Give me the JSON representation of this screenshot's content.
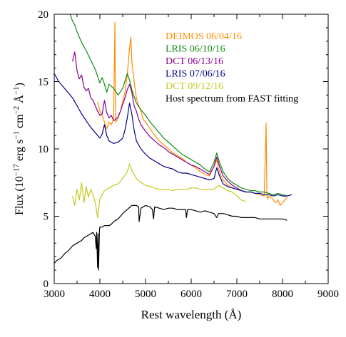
{
  "chart_data": {
    "type": "line",
    "xlabel": "Rest wavelength (Å)",
    "ylabel_main": "Flux (10",
    "ylabel_exp1": "−17",
    "ylabel_mid": " erg s",
    "ylabel_exp2": "−1",
    "ylabel_mid2": " cm",
    "ylabel_exp3": "−2",
    "ylabel_mid3": " Å",
    "ylabel_exp4": "−1",
    "ylabel_end": ")",
    "xlim": [
      3000,
      9000
    ],
    "ylim": [
      0,
      20
    ],
    "xticks": [
      "3000",
      "4000",
      "5000",
      "6000",
      "7000",
      "8000",
      "9000"
    ],
    "yticks": [
      "0",
      "5",
      "10",
      "15",
      "20"
    ],
    "grid": false,
    "legend_position": "top-right",
    "series": [
      {
        "name": "DEIMOS 06/04/16",
        "color": "#ff8c00",
        "x": [
          3950,
          4000,
          4050,
          4100,
          4150,
          4200,
          4250,
          4300,
          4330,
          4340,
          4350,
          4400,
          4450,
          4500,
          4550,
          4600,
          4650,
          4680,
          4700,
          4750,
          4800,
          4850,
          4900,
          4950,
          5000,
          5100,
          5200,
          5300,
          5400,
          5500,
          5600,
          5700,
          5800,
          5900,
          6000,
          6100,
          6200,
          6300,
          6400,
          6500,
          6560,
          6600,
          6650,
          6700,
          6800,
          6900,
          7000,
          7100,
          7200,
          7300,
          7400,
          7500,
          7600,
          7640,
          7660,
          7680,
          7700,
          7750,
          7800,
          7850,
          7900,
          7950,
          8000,
          8050,
          8100
        ],
        "y": [
          13.5,
          12.8,
          12.5,
          12.0,
          11.5,
          12.0,
          11.8,
          12.2,
          19.4,
          12.5,
          12.0,
          12.3,
          12.8,
          13.5,
          14.2,
          15.5,
          17.5,
          18.3,
          16.5,
          15.0,
          13.8,
          13.2,
          12.8,
          12.2,
          12.0,
          11.5,
          11.0,
          10.6,
          10.3,
          10.0,
          9.7,
          9.5,
          9.3,
          9.0,
          8.8,
          8.6,
          8.3,
          8.1,
          8.0,
          8.7,
          9.2,
          8.5,
          8.0,
          7.7,
          7.3,
          7.1,
          7.0,
          6.9,
          6.8,
          6.8,
          6.7,
          6.6,
          6.5,
          11.9,
          6.4,
          6.3,
          6.5,
          6.4,
          6.2,
          6.0,
          6.2,
          5.8,
          6.0,
          6.2,
          6.4
        ]
      },
      {
        "name": "LRIS 06/10/16",
        "color": "#0f8a0f",
        "x": [
          3300,
          3350,
          3400,
          3450,
          3500,
          3550,
          3600,
          3700,
          3800,
          3900,
          4000,
          4050,
          4100,
          4150,
          4200,
          4300,
          4400,
          4500,
          4600,
          4650,
          4700,
          4750,
          4800,
          4900,
          5000,
          5100,
          5200,
          5300,
          5400,
          5500,
          5600,
          5700,
          5800,
          5900,
          6000,
          6100,
          6200,
          6300,
          6400,
          6500,
          6560,
          6620,
          6700,
          6800,
          6900,
          7000,
          7100,
          7200,
          7300,
          7400,
          7500,
          7600,
          7700,
          7800,
          7900,
          8000,
          8100,
          8200
        ],
        "y": [
          20.2,
          20.0,
          19.5,
          19.2,
          18.7,
          18.3,
          17.9,
          17.3,
          16.6,
          15.9,
          14.9,
          15.3,
          14.8,
          14.2,
          14.8,
          14.5,
          14.0,
          14.5,
          15.6,
          15.1,
          14.4,
          13.9,
          13.4,
          12.9,
          12.5,
          12.0,
          11.6,
          11.2,
          10.8,
          10.5,
          10.2,
          9.9,
          9.6,
          9.4,
          9.2,
          9.0,
          8.8,
          8.5,
          8.3,
          9.0,
          9.7,
          9.0,
          8.3,
          7.8,
          7.5,
          7.3,
          7.1,
          7.0,
          6.9,
          6.9,
          6.8,
          6.8,
          6.7,
          6.6,
          6.7,
          6.6,
          6.5,
          6.6
        ]
      },
      {
        "name": "DCT 06/13/16",
        "color": "#8b008b",
        "x": [
          3400,
          3450,
          3500,
          3550,
          3600,
          3650,
          3700,
          3750,
          3800,
          3850,
          3900,
          3950,
          4000,
          4050,
          4100,
          4150,
          4200,
          4250,
          4300,
          4350,
          4400,
          4450,
          4500,
          4550,
          4600,
          4650,
          4700,
          4750,
          4800,
          4850,
          4900,
          5000,
          5100,
          5200,
          5300,
          5400,
          5500,
          5600,
          5700,
          5800,
          5900,
          6000,
          6100,
          6200,
          6300,
          6400,
          6500,
          6560,
          6620,
          6700,
          6800,
          6900,
          7000,
          7100,
          7200
        ],
        "y": [
          16.5,
          17.2,
          15.8,
          15.2,
          15.5,
          14.6,
          14.3,
          14.5,
          13.8,
          13.6,
          13.2,
          12.8,
          12.5,
          12.6,
          13.6,
          12.7,
          12.3,
          12.5,
          12.1,
          12.2,
          12.4,
          12.8,
          13.3,
          13.8,
          14.4,
          14.8,
          14.2,
          13.2,
          12.8,
          12.2,
          11.8,
          11.3,
          10.9,
          10.6,
          10.3,
          10.1,
          9.8,
          9.6,
          9.4,
          9.2,
          9.0,
          8.8,
          8.7,
          8.5,
          8.3,
          8.1,
          8.7,
          9.4,
          8.7,
          8.0,
          7.6,
          7.3,
          7.1,
          6.9,
          6.8
        ]
      },
      {
        "name": "LRIS 07/06/16",
        "color": "#00008b",
        "x": [
          3000,
          3100,
          3200,
          3300,
          3400,
          3500,
          3600,
          3700,
          3800,
          3900,
          4000,
          4050,
          4100,
          4150,
          4200,
          4300,
          4400,
          4500,
          4550,
          4600,
          4650,
          4700,
          4750,
          4800,
          4900,
          5000,
          5100,
          5200,
          5300,
          5400,
          5500,
          5600,
          5700,
          5800,
          5900,
          6000,
          6100,
          6200,
          6300,
          6400,
          6500,
          6560,
          6620,
          6700,
          6800,
          6900,
          7000,
          7100,
          7200,
          7300,
          7400,
          7500,
          7600,
          7700,
          7800,
          7900,
          8000,
          8100,
          8200
        ],
        "y": [
          15.6,
          15.0,
          14.6,
          14.2,
          13.8,
          13.2,
          12.6,
          12.1,
          11.6,
          11.2,
          10.8,
          11.1,
          11.8,
          11.0,
          10.6,
          10.4,
          10.5,
          10.8,
          11.4,
          12.3,
          13.4,
          12.6,
          11.4,
          10.6,
          10.0,
          9.6,
          9.3,
          9.1,
          8.9,
          8.7,
          8.6,
          8.5,
          8.3,
          8.2,
          8.2,
          8.1,
          8.0,
          7.9,
          7.8,
          7.7,
          7.8,
          8.6,
          8.0,
          7.4,
          7.2,
          7.1,
          7.0,
          6.9,
          6.8,
          6.8,
          6.7,
          6.7,
          6.6,
          6.6,
          6.5,
          6.6,
          6.5,
          6.5,
          6.6
        ]
      },
      {
        "name": "DCT 09/12/16",
        "color": "#c5c81e",
        "x": [
          3400,
          3450,
          3500,
          3550,
          3600,
          3650,
          3700,
          3750,
          3800,
          3850,
          3900,
          3950,
          4000,
          4100,
          4200,
          4300,
          4400,
          4500,
          4600,
          4650,
          4700,
          4800,
          4900,
          5000,
          5100,
          5200,
          5300,
          5400,
          5500,
          5600,
          5700,
          5800,
          5900,
          6000,
          6100,
          6200,
          6300,
          6400,
          6500,
          6600,
          6700,
          6800,
          6900,
          7000,
          7100,
          7200
        ],
        "y": [
          6.5,
          5.8,
          7.0,
          6.2,
          7.5,
          6.0,
          7.2,
          6.4,
          7.0,
          6.6,
          6.0,
          4.9,
          6.3,
          6.9,
          7.1,
          7.3,
          7.4,
          7.8,
          8.3,
          8.9,
          8.4,
          7.8,
          7.5,
          7.3,
          7.2,
          7.1,
          7.0,
          7.0,
          7.0,
          6.9,
          7.0,
          7.0,
          7.0,
          7.1,
          7.1,
          7.0,
          7.0,
          7.0,
          7.0,
          7.3,
          7.1,
          6.9,
          6.8,
          6.5,
          6.2,
          6.1
        ]
      },
      {
        "name": "Host spectrum from FAST fitting",
        "color": "#000000",
        "x": [
          3000,
          3050,
          3100,
          3150,
          3200,
          3250,
          3300,
          3350,
          3400,
          3450,
          3500,
          3550,
          3600,
          3650,
          3700,
          3750,
          3800,
          3850,
          3900,
          3920,
          3930,
          3950,
          3960,
          3970,
          3990,
          4000,
          4050,
          4100,
          4150,
          4200,
          4250,
          4300,
          4350,
          4400,
          4450,
          4500,
          4600,
          4700,
          4800,
          4850,
          4860,
          4900,
          5000,
          5100,
          5150,
          5175,
          5200,
          5300,
          5400,
          5500,
          5600,
          5700,
          5800,
          5880,
          5895,
          5920,
          6000,
          6100,
          6200,
          6300,
          6400,
          6500,
          6560,
          6600,
          6700,
          6800,
          6900,
          7000,
          7100,
          7200,
          7300,
          7400,
          7500,
          7600,
          7700,
          7800,
          7900,
          8000,
          8100
        ],
        "y": [
          1.5,
          1.7,
          1.8,
          1.9,
          2.1,
          2.3,
          2.4,
          2.6,
          2.8,
          2.9,
          3.0,
          3.1,
          3.2,
          3.4,
          3.5,
          3.6,
          3.7,
          3.8,
          3.5,
          2.6,
          3.8,
          1.2,
          3.7,
          1.0,
          3.9,
          4.2,
          4.2,
          4.3,
          4.3,
          4.3,
          4.4,
          4.6,
          4.7,
          4.8,
          5.0,
          5.2,
          5.5,
          5.8,
          5.8,
          5.7,
          4.6,
          5.6,
          5.8,
          5.7,
          5.5,
          4.8,
          5.7,
          5.6,
          5.5,
          5.6,
          5.6,
          5.5,
          5.5,
          5.5,
          4.9,
          5.5,
          5.5,
          5.4,
          5.3,
          5.4,
          5.3,
          5.2,
          4.9,
          5.2,
          5.2,
          5.1,
          5.0,
          5.0,
          4.9,
          4.9,
          4.9,
          4.9,
          4.8,
          4.8,
          4.8,
          4.8,
          4.8,
          4.8,
          4.7
        ]
      }
    ]
  }
}
